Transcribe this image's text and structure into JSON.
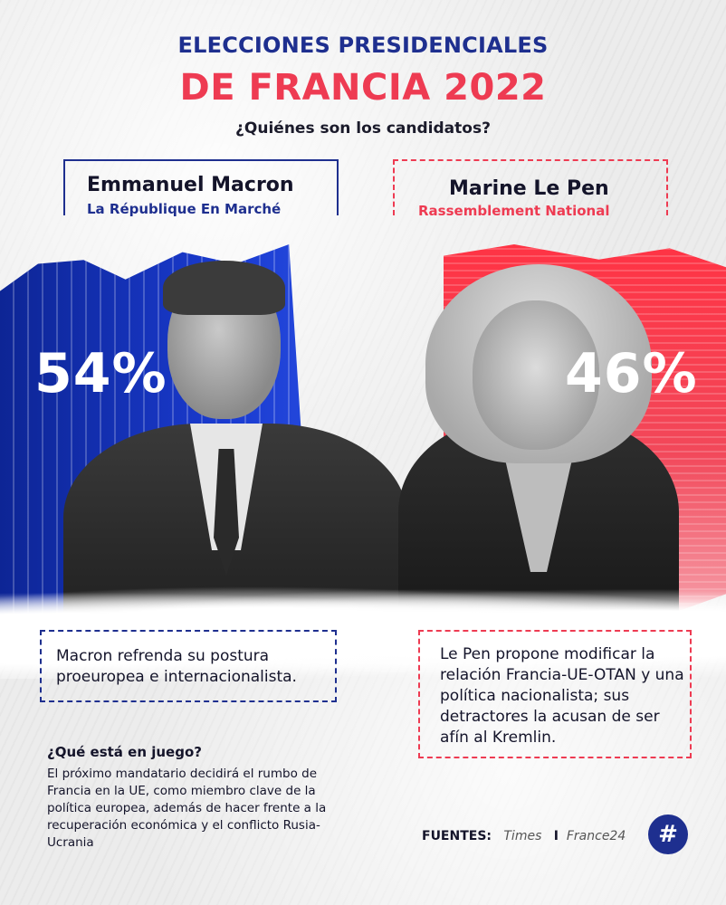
{
  "header": {
    "title_line1": "ELECCIONES PRESIDENCIALES",
    "title_line2": "DE FRANCIA 2022",
    "subtitle": "¿Quiénes son los candidatos?"
  },
  "candidates": [
    {
      "name": "Emmanuel Macron",
      "party": "La République En Marché",
      "percent": "54%",
      "description": "Macron refrenda su postura proeuropea e internacionalista.",
      "color": "#1e2f8f"
    },
    {
      "name": "Marine Le Pen",
      "party": "Rassemblement National",
      "percent": "46%",
      "description": "Le Pen propone modificar la relación Francia-UE-OTAN y una política nacionalista; sus detractores la acusan de ser afín al Kremlin.",
      "color": "#ee3b52"
    }
  ],
  "stakes": {
    "title": "¿Qué está en juego?",
    "text": "El próximo mandatario decidirá el rumbo de Francia en la UE, como miembro clave de la política europea, además de hacer frente a la recuperación económica y el conflicto Rusia-Ucrania"
  },
  "sources": {
    "label": "FUENTES:",
    "items": [
      "Times",
      "France24"
    ],
    "separator": "I"
  },
  "logo": {
    "icon": "hash-speech-bubble-icon",
    "glyph": "#"
  }
}
